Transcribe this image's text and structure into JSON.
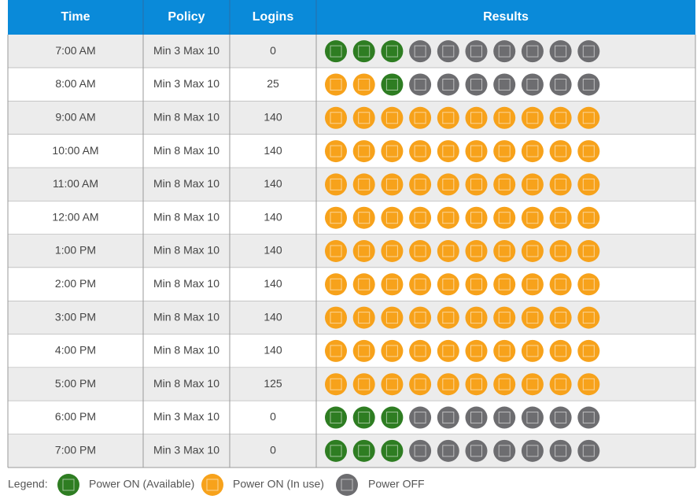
{
  "table": {
    "columns": [
      "Time",
      "Policy",
      "Logins",
      "Results"
    ],
    "rows": [
      {
        "time": "7:00 AM",
        "policy": "Min 3 Max 10",
        "logins": 0,
        "results": [
          3,
          0,
          7
        ]
      },
      {
        "time": "8:00 AM",
        "policy": "Min 3 Max 10",
        "logins": 25,
        "results": [
          1,
          2,
          7
        ]
      },
      {
        "time": "9:00 AM",
        "policy": "Min 8 Max 10",
        "logins": 140,
        "results": [
          0,
          10,
          0
        ]
      },
      {
        "time": "10:00 AM",
        "policy": "Min 8 Max 10",
        "logins": 140,
        "results": [
          0,
          10,
          0
        ]
      },
      {
        "time": "11:00 AM",
        "policy": "Min 8 Max 10",
        "logins": 140,
        "results": [
          0,
          10,
          0
        ]
      },
      {
        "time": "12:00 AM",
        "policy": "Min 8 Max 10",
        "logins": 140,
        "results": [
          0,
          10,
          0
        ]
      },
      {
        "time": "1:00 PM",
        "policy": "Min 8 Max 10",
        "logins": 140,
        "results": [
          0,
          10,
          0
        ]
      },
      {
        "time": "2:00 PM",
        "policy": "Min 8 Max 10",
        "logins": 140,
        "results": [
          0,
          10,
          0
        ]
      },
      {
        "time": "3:00 PM",
        "policy": "Min 8 Max 10",
        "logins": 140,
        "results": [
          0,
          10,
          0
        ]
      },
      {
        "time": "4:00 PM",
        "policy": "Min 8 Max 10",
        "logins": 140,
        "results": [
          0,
          10,
          0
        ]
      },
      {
        "time": "5:00 PM",
        "policy": "Min 8 Max 10",
        "logins": 125,
        "results": [
          0,
          10,
          0
        ]
      },
      {
        "time": "6:00 PM",
        "policy": "Min 3 Max 10",
        "logins": 0,
        "results": [
          3,
          0,
          7
        ]
      },
      {
        "time": "7:00 PM",
        "policy": "Min 3 Max 10",
        "logins": 0,
        "results": [
          3,
          0,
          7
        ]
      }
    ]
  },
  "legend": {
    "title": "Legend:",
    "items": [
      {
        "label": "Power ON (Available)",
        "color": "#2e7d22"
      },
      {
        "label": "Power ON (In use)",
        "color": "#f7a21b"
      },
      {
        "label": "Power OFF",
        "color": "#6d6d70"
      }
    ]
  }
}
